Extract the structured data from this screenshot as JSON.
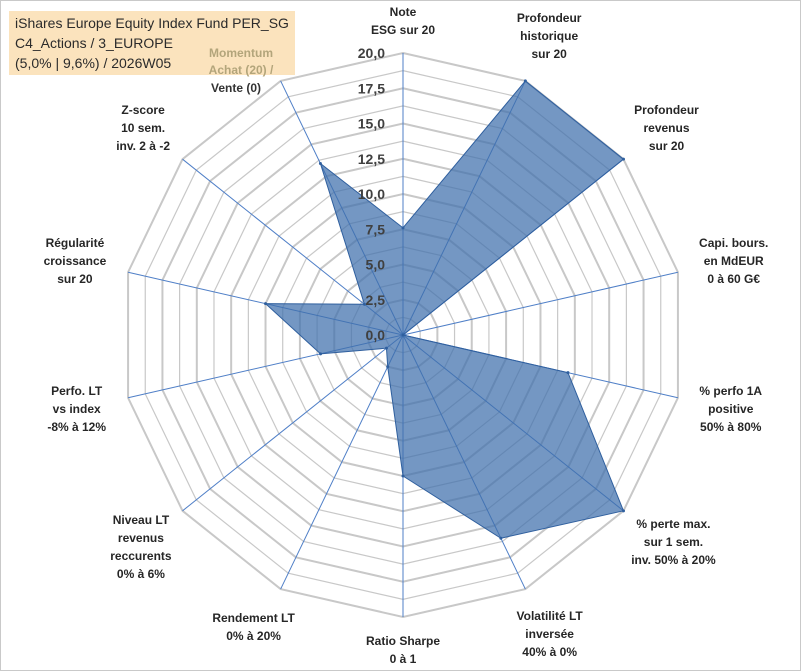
{
  "header": {
    "title_lines": [
      "iShares Europe Equity Index Fund PER_SG",
      "C4_Actions / 3_EUROPE",
      "(5,0% | 9,6%) / 2026W05"
    ],
    "momentum_lines": [
      "Momentum",
      "Achat (20) /"
    ],
    "vente_label": "Vente (0)"
  },
  "colors": {
    "fill": "#3f6fac",
    "fill_opacity": 0.72,
    "grid": "#c8c8c8",
    "spoke": "#4f7fc7",
    "title_bg": "#fbe3bd"
  },
  "chart_data": {
    "type": "radar",
    "rmax": 20,
    "ticks": [
      "0,0",
      "2,5",
      "5,0",
      "7,5",
      "10,0",
      "12,5",
      "15,0",
      "17,5",
      "20,0"
    ],
    "axes": [
      {
        "lines": [
          "Note",
          "ESG sur 20"
        ],
        "value": 7.6
      },
      {
        "lines": [
          "Profondeur",
          "historique",
          "sur 20"
        ],
        "value": 20.0
      },
      {
        "lines": [
          "Profondeur",
          "revenus",
          "sur 20"
        ],
        "value": 20.0
      },
      {
        "lines": [
          "Capi. bours.",
          "en MdEUR",
          "0 à 60 G€"
        ],
        "value": 0.0
      },
      {
        "lines": [
          "% perfo 1A",
          "positive",
          "50% à 80%"
        ],
        "value": 12.0
      },
      {
        "lines": [
          "% perte max.",
          "sur 1 sem.",
          "inv. 50% à 20%"
        ],
        "value": 20.0
      },
      {
        "lines": [
          "Volatilité LT",
          "inversée",
          "40% à 0%"
        ],
        "value": 16.0
      },
      {
        "lines": [
          "Ratio Sharpe",
          "0 à 1"
        ],
        "value": 10.0
      },
      {
        "lines": [
          "Rendement LT",
          "0% à 20%"
        ],
        "value": 2.5
      },
      {
        "lines": [
          "Niveau LT",
          "revenus",
          "reccurents",
          "0% à 6%"
        ],
        "value": 1.5
      },
      {
        "lines": [
          "Perfo. LT",
          "vs index",
          "-8% à 12%"
        ],
        "value": 6.0
      },
      {
        "lines": [
          "Régularité",
          "croissance",
          "sur 20"
        ],
        "value": 10.0
      },
      {
        "lines": [
          "Z-score",
          "10 sem.",
          "inv. 2 à -2"
        ],
        "value": 3.5
      },
      {
        "lines": [],
        "value": 13.5
      }
    ]
  }
}
